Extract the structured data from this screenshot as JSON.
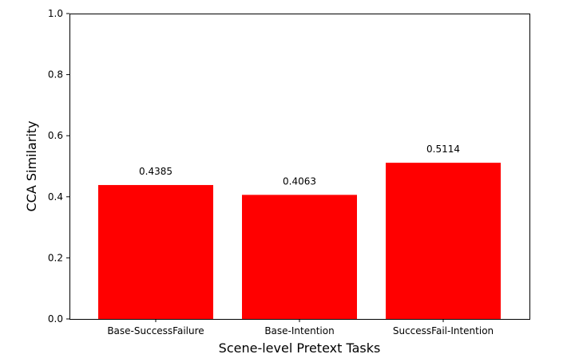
{
  "chart_data": {
    "type": "bar",
    "categories": [
      "Base-SuccessFailure",
      "Base-Intention",
      "SuccessFail-Intention"
    ],
    "values": [
      0.4385,
      0.4063,
      0.5114
    ],
    "value_labels": [
      "0.4385",
      "0.4063",
      "0.5114"
    ],
    "title": "",
    "xlabel": "Scene-level Pretext Tasks",
    "ylabel": "CCA Similarity",
    "ylim": [
      0,
      1.0
    ],
    "yticks": [
      0.0,
      0.2,
      0.4,
      0.6,
      0.8,
      1.0
    ],
    "ytick_labels": [
      "0.0",
      "0.2",
      "0.4",
      "0.6",
      "0.8",
      "1.0"
    ],
    "bar_color": "#ff0000",
    "grid": false,
    "legend": "none"
  }
}
